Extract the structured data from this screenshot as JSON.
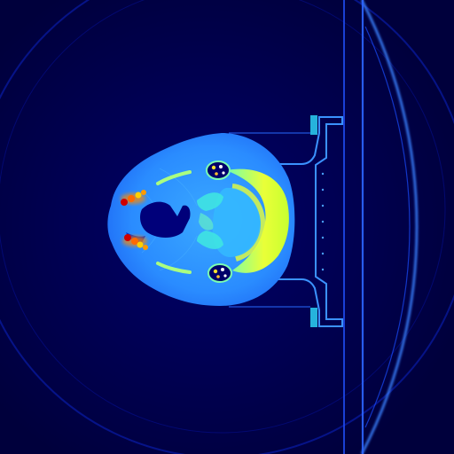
{
  "image": {
    "kind": "ct-axial-slice",
    "colormap": "jet",
    "colors": {
      "background": "#00004a",
      "deep_blue": "#0000a0",
      "soft_tissue": "#1e90ff",
      "tissue_light": "#3aa9ff",
      "bone_cyan": "#30ffd0",
      "bone_yellow": "#e9ff38",
      "dense_orange": "#ff8a00",
      "dense_red": "#d00000",
      "ring_line": "#2f6bff",
      "couch_line": "#3a82ff"
    }
  }
}
